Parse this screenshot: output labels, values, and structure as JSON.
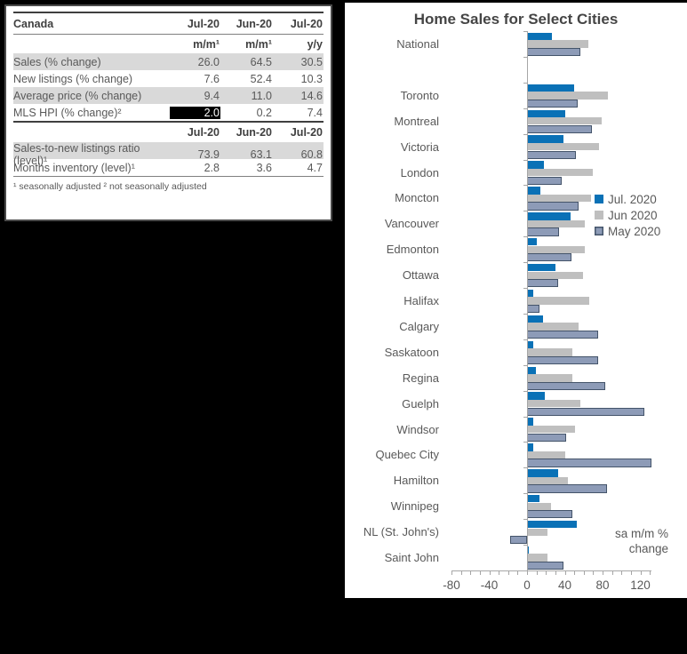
{
  "table": {
    "corner_label": "Canada",
    "period_headers": [
      "Jul-20",
      "Jun-20",
      "Jul-20"
    ],
    "unit_headers": [
      "m/m¹",
      "m/m¹",
      "y/y"
    ],
    "rows_top": [
      {
        "label": "Sales (% change)",
        "values": [
          "26.0",
          "64.5",
          "30.5"
        ],
        "shaded": true,
        "highlight_first": false
      },
      {
        "label": "New listings (% change)",
        "values": [
          "7.6",
          "52.4",
          "10.3"
        ],
        "shaded": false,
        "highlight_first": false
      },
      {
        "label": "Average price (% change)",
        "values": [
          "9.4",
          "11.0",
          "14.6"
        ],
        "shaded": true,
        "highlight_first": false
      },
      {
        "label": "MLS HPI (% change)²",
        "values": [
          "2.0",
          "0.2",
          "7.4"
        ],
        "shaded": false,
        "highlight_first": true
      }
    ],
    "period_headers_2": [
      "Jul-20",
      "Jun-20",
      "Jul-20"
    ],
    "rows_bottom": [
      {
        "label": "Sales-to-new listings ratio (level)¹",
        "values": [
          "73.9",
          "63.1",
          "60.8"
        ],
        "shaded": true,
        "highlight_first": false
      },
      {
        "label": "Months inventory (level)¹",
        "values": [
          "2.8",
          "3.6",
          "4.7"
        ],
        "shaded": false,
        "highlight_first": false
      }
    ],
    "footnote": "¹ seasonally adjusted  ² not seasonally adjusted"
  },
  "chart_data": {
    "type": "bar",
    "orientation": "horizontal",
    "title": "Home Sales for Select Cities",
    "annotation": "sa m/m %\nchange",
    "xlabel": "sa m/m % change",
    "xlim": [
      -80,
      135
    ],
    "x_ticks": [
      -80,
      -40,
      0,
      40,
      80,
      120
    ],
    "minor_tick_step": 10,
    "grid": false,
    "legend_position": "middle-right",
    "categories": [
      "National",
      "",
      "Toronto",
      "Montreal",
      "Victoria",
      "London",
      "Moncton",
      "Vancouver",
      "Edmonton",
      "Ottawa",
      "Halifax",
      "Calgary",
      "Saskatoon",
      "Regina",
      "Guelph",
      "Windsor",
      "Quebec City",
      "Hamilton",
      "Winnipeg",
      "NL (St. John's)",
      "Saint John"
    ],
    "series": [
      {
        "name": "Jul. 2020",
        "color": "#0a71b6",
        "values": [
          26,
          null,
          50,
          40,
          39,
          18,
          14,
          46,
          10,
          30,
          7,
          17,
          7,
          9,
          19,
          7,
          7,
          33,
          13,
          53,
          2
        ]
      },
      {
        "name": "Jun 2020",
        "color": "#bfbfbf",
        "values": [
          64.5,
          null,
          86,
          79,
          76,
          70,
          68,
          61,
          61,
          59,
          66,
          55,
          48,
          48,
          56,
          51,
          40,
          43,
          25,
          22,
          22
        ]
      },
      {
        "name": "May 2020",
        "color": "#8d9bb7",
        "border_color": "#44546a",
        "values": [
          56,
          null,
          54,
          69,
          52,
          37,
          55,
          34,
          47,
          33,
          13,
          75,
          75,
          83,
          124,
          41,
          132,
          85,
          48,
          -18,
          39
        ]
      }
    ]
  },
  "colors": {
    "background": "#000000",
    "panel": "#ffffff",
    "shaded_row": "#d9d9d9",
    "table_text": "#595959",
    "header_text": "#3f3f3f",
    "axis": "#a6a6a6",
    "highlight_cell_bg": "#000000",
    "highlight_cell_text": "#ffffff"
  }
}
